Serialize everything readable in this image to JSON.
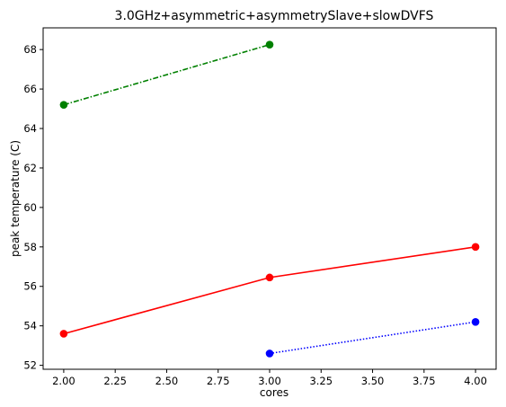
{
  "chart_data": {
    "type": "line",
    "title": "3.0GHz+asymmetric+asymmetrySlave+slowDVFS",
    "xlabel": "cores",
    "ylabel": "peak temperature (C)",
    "xlim": [
      1.9,
      4.1
    ],
    "ylim": [
      51.8,
      69.1
    ],
    "xticks": [
      2.0,
      2.25,
      2.5,
      2.75,
      3.0,
      3.25,
      3.5,
      3.75,
      4.0
    ],
    "xtick_labels": [
      "2.00",
      "2.25",
      "2.50",
      "2.75",
      "3.00",
      "3.25",
      "3.50",
      "3.75",
      "4.00"
    ],
    "yticks": [
      52,
      54,
      56,
      58,
      60,
      62,
      64,
      66,
      68
    ],
    "ytick_labels": [
      "52",
      "54",
      "56",
      "58",
      "60",
      "62",
      "64",
      "66",
      "68"
    ],
    "grid": false,
    "series": [
      {
        "color": "#008000",
        "linestyle": "dashdot",
        "marker": "circle",
        "x": [
          2,
          3
        ],
        "y": [
          65.2,
          68.25
        ]
      },
      {
        "color": "#ff0000",
        "linestyle": "solid",
        "marker": "circle",
        "x": [
          2,
          3,
          4
        ],
        "y": [
          53.6,
          56.45,
          58.0
        ]
      },
      {
        "color": "#0000ff",
        "linestyle": "dotted",
        "marker": "circle",
        "x": [
          3,
          4
        ],
        "y": [
          52.6,
          54.2
        ]
      }
    ]
  }
}
